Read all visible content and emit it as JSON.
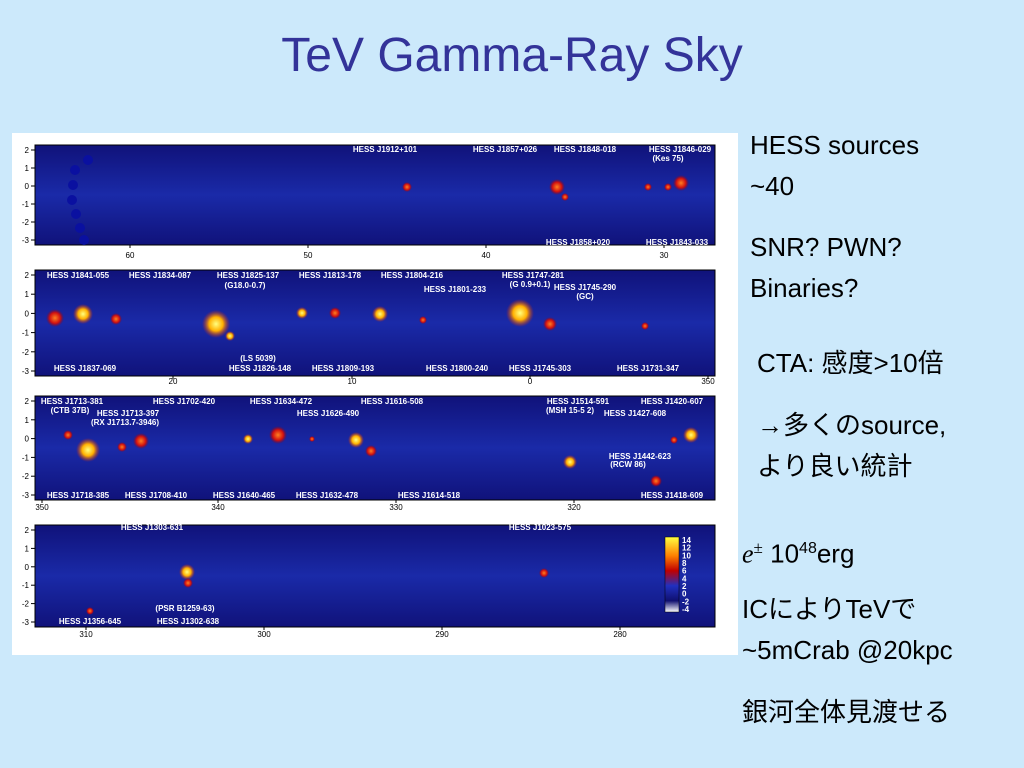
{
  "title": "TeV Gamma-Ray Sky",
  "figure": {
    "panels": [
      {
        "y_ticks": [
          "2",
          "1",
          "0",
          "-1",
          "-2",
          "-3"
        ],
        "x_ticks": [
          "60",
          "50",
          "40",
          "30"
        ],
        "labels": [
          "HESS J1912+101",
          "HESS J1857+026",
          "HESS J1848-018",
          "HESS J1846-029",
          "(Kes 75)",
          "HESS J1858+020",
          "HESS J1843-033"
        ]
      },
      {
        "y_ticks": [
          "2",
          "1",
          "0",
          "-1",
          "-2",
          "-3"
        ],
        "x_ticks": [
          "20",
          "10",
          "0",
          "350"
        ],
        "labels": [
          "HESS J1841-055",
          "HESS J1834-087",
          "HESS J1825-137",
          "HESS J1813-178",
          "HESS J1804-216",
          "HESS J1747-281",
          "(G18.0-0.7)",
          "HESS J1801-233",
          "(G 0.9+0.1)",
          "HESS J1745-290",
          "(GC)",
          "HESS J1837-069",
          "(LS 5039)",
          "HESS J1826-148",
          "HESS J1809-193",
          "HESS J1800-240",
          "HESS J1745-303",
          "HESS J1731-347"
        ]
      },
      {
        "y_ticks": [
          "2",
          "1",
          "0",
          "-1",
          "-2",
          "-3"
        ],
        "x_ticks": [
          "350",
          "340",
          "330",
          "320"
        ],
        "labels": [
          "HESS J1713-381",
          "(CTB 37B)",
          "HESS J1713-397",
          "(RX J1713.7-3946)",
          "HESS J1702-420",
          "HESS J1634-472",
          "HESS J1626-490",
          "HESS J1616-508",
          "HESS J1514-591",
          "(MSH 15-5 2)",
          "HESS J1420-607",
          "HESS J1427-608",
          "HESS J1442-623",
          "(RCW 86)",
          "HESS J1718-385",
          "HESS J1708-410",
          "HESS J1640-465",
          "HESS J1632-478",
          "HESS J1614-518",
          "HESS J1418-609"
        ]
      },
      {
        "y_ticks": [
          "2",
          "1",
          "0",
          "-1",
          "-2",
          "-3"
        ],
        "x_ticks": [
          "310",
          "300",
          "290",
          "280"
        ],
        "labels": [
          "HESS J1303-631",
          "HESS J1023-575",
          "(PSR B1259-63)",
          "HESS J1356-645",
          "HESS J1302-638"
        ]
      }
    ],
    "colorbar": [
      "14",
      "12",
      "10",
      "8",
      "6",
      "4",
      "2",
      "0",
      "-2",
      "-4"
    ]
  },
  "notes": {
    "sources": [
      "HESS sources",
      "~40"
    ],
    "classes": [
      "SNR? PWN?",
      "Binaries?"
    ],
    "cta": [
      "CTA: 感度>10倍",
      "→多くのsource,",
      "より良い統計"
    ],
    "energy": {
      "symbol": "e",
      "sup": "±",
      "base": "10",
      "exp": "48",
      "unit": "erg"
    },
    "ic": [
      "ICによりTeVで",
      "~5mCrab @20kpc"
    ],
    "view": "銀河全体見渡せる"
  }
}
